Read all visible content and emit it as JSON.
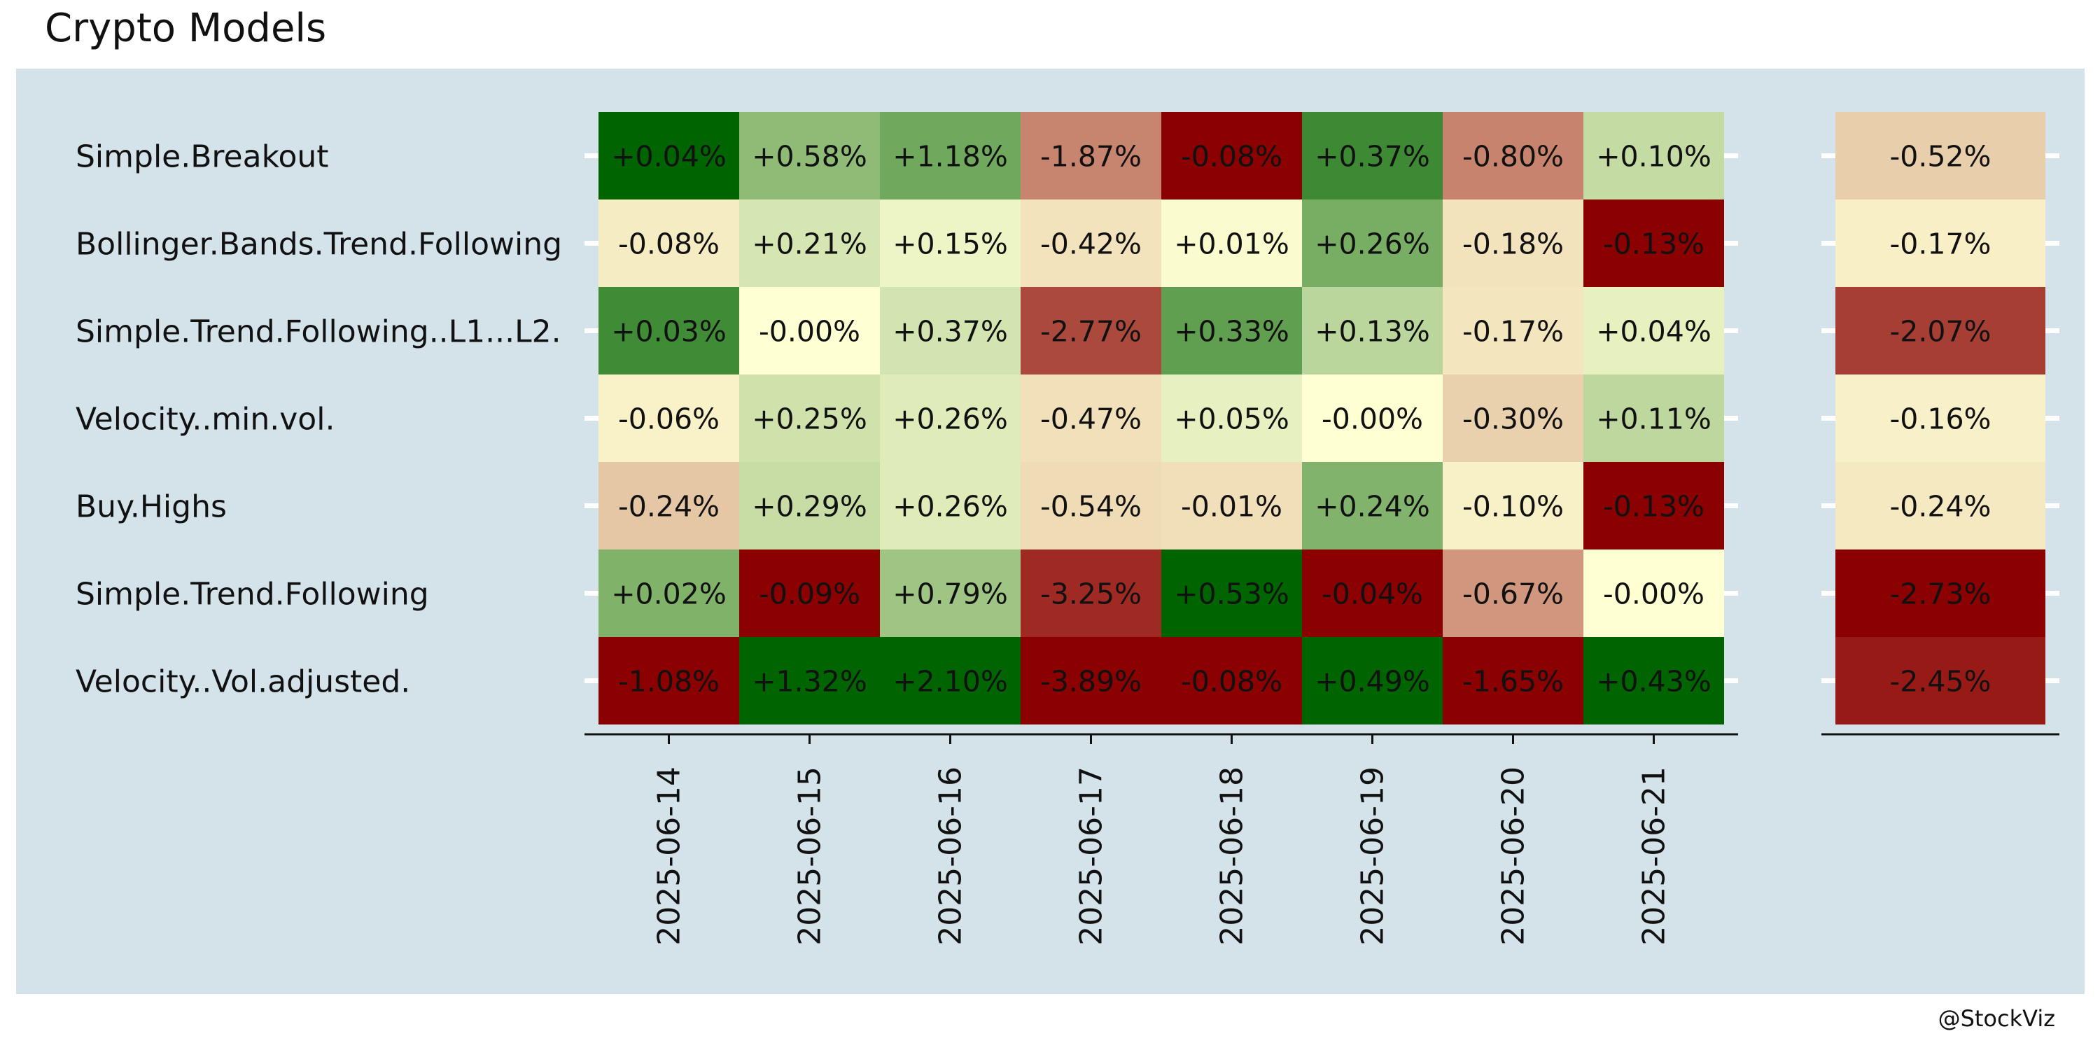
{
  "title": "Crypto Models",
  "caption": "@StockViz",
  "colors": {
    "panel_background": "#d4e3ea",
    "low": "#8b0000",
    "mid": "#ffffd4",
    "high": "#006400"
  },
  "chart_data": {
    "type": "heatmap",
    "title": "Crypto Models",
    "x_categories": [
      "2025-06-14",
      "2025-06-15",
      "2025-06-16",
      "2025-06-17",
      "2025-06-18",
      "2025-06-19",
      "2025-06-20",
      "2025-06-21"
    ],
    "y_categories": [
      "Simple.Breakout",
      "Bollinger.Bands.Trend.Following",
      "Simple.Trend.Following..L1...L2.",
      "Velocity..min.vol.",
      "Buy.Highs",
      "Simple.Trend.Following",
      "Velocity..Vol.adjusted."
    ],
    "values": [
      [
        0.04,
        0.58,
        1.18,
        -1.87,
        -0.08,
        0.37,
        -0.8,
        0.1
      ],
      [
        -0.08,
        0.21,
        0.15,
        -0.42,
        0.01,
        0.26,
        -0.18,
        -0.13
      ],
      [
        0.03,
        -0.0,
        0.37,
        -2.77,
        0.33,
        0.13,
        -0.17,
        0.04
      ],
      [
        -0.06,
        0.25,
        0.26,
        -0.47,
        0.05,
        -0.0,
        -0.3,
        0.11
      ],
      [
        -0.24,
        0.29,
        0.26,
        -0.54,
        -0.01,
        0.24,
        -0.1,
        -0.13
      ],
      [
        0.02,
        -0.09,
        0.79,
        -3.25,
        0.53,
        -0.04,
        -0.67,
        -0.0
      ],
      [
        -1.08,
        1.32,
        2.1,
        -3.89,
        -0.08,
        0.49,
        -1.65,
        0.43
      ]
    ],
    "labels": [
      [
        "+0.04%",
        "+0.58%",
        "+1.18%",
        "-1.87%",
        "-0.08%",
        "+0.37%",
        "-0.80%",
        "+0.10%"
      ],
      [
        "-0.08%",
        "+0.21%",
        "+0.15%",
        "-0.42%",
        "+0.01%",
        "+0.26%",
        "-0.18%",
        "-0.13%"
      ],
      [
        "+0.03%",
        "-0.00%",
        "+0.37%",
        "-2.77%",
        "+0.33%",
        "+0.13%",
        "-0.17%",
        "+0.04%"
      ],
      [
        "-0.06%",
        "+0.25%",
        "+0.26%",
        "-0.47%",
        "+0.05%",
        "-0.00%",
        "-0.30%",
        "+0.11%"
      ],
      [
        "-0.24%",
        "+0.29%",
        "+0.26%",
        "-0.54%",
        "-0.01%",
        "+0.24%",
        "-0.10%",
        "-0.13%"
      ],
      [
        "+0.02%",
        "-0.09%",
        "+0.79%",
        "-3.25%",
        "+0.53%",
        "-0.04%",
        "-0.67%",
        "-0.00%"
      ],
      [
        "-1.08%",
        "+1.32%",
        "+2.10%",
        "-3.89%",
        "-0.08%",
        "+0.49%",
        "-1.65%",
        "+0.43%"
      ]
    ],
    "totals": [
      -0.52,
      -0.17,
      -2.07,
      -0.16,
      -0.24,
      -2.73,
      -2.45
    ],
    "total_labels": [
      "-0.52%",
      "-0.17%",
      "-2.07%",
      "-0.16%",
      "-0.24%",
      "-2.73%",
      "-2.45%"
    ],
    "grid": false,
    "legend": "none"
  }
}
